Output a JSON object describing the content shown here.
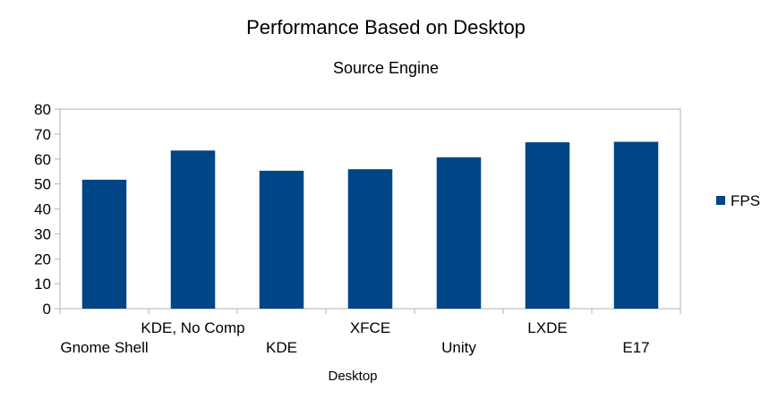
{
  "chart_data": {
    "type": "bar",
    "title": "Performance Based on Desktop",
    "subtitle": "Source Engine",
    "xlabel": "Desktop",
    "ylabel": "",
    "categories": [
      "Gnome Shell",
      "KDE, No Comp",
      "KDE",
      "XFCE",
      "Unity",
      "LXDE",
      "E17"
    ],
    "series": [
      {
        "name": "FPS",
        "values": [
          51.7,
          63.4,
          55.3,
          55.9,
          60.7,
          66.7,
          66.9
        ],
        "color": "#004586"
      }
    ],
    "ylim": [
      0,
      80
    ],
    "yticks": [
      "0",
      "10",
      "20",
      "30",
      "40",
      "50",
      "60",
      "70",
      "80"
    ],
    "grid": false,
    "legend_position": "right"
  }
}
